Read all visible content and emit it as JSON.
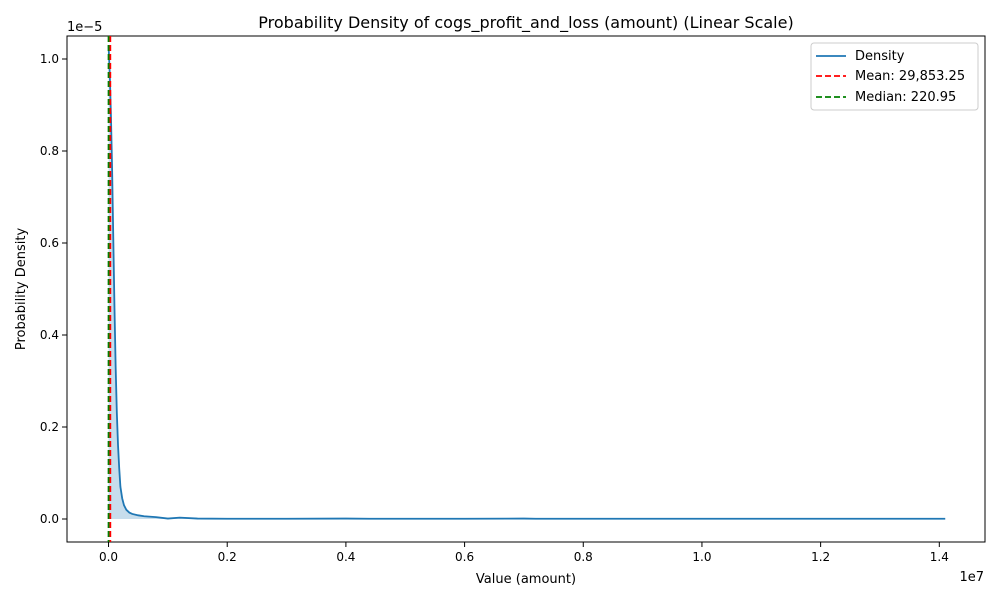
{
  "chart_data": {
    "type": "area",
    "title": "Probability Density of cogs_profit_and_loss (amount) (Linear Scale)",
    "xlabel": "Value (amount)",
    "ylabel": "Probability Density",
    "x_offset_label": "1e7",
    "y_offset_label": "1e−5",
    "x_scale": 10000000,
    "y_scale": 1e-05,
    "xlim": [
      -0.07,
      1.477
    ],
    "ylim": [
      -0.05,
      1.05
    ],
    "x_ticks": [
      0.0,
      0.2,
      0.4,
      0.6,
      0.8,
      1.0,
      1.2,
      1.4
    ],
    "x_tick_labels": [
      "0.0",
      "0.2",
      "0.4",
      "0.6",
      "0.8",
      "1.0",
      "1.2",
      "1.4"
    ],
    "y_ticks": [
      0.0,
      0.2,
      0.4,
      0.6,
      0.8,
      1.0
    ],
    "y_tick_labels": [
      "0.0",
      "0.2",
      "0.4",
      "0.6",
      "0.8",
      "1.0"
    ],
    "grid": false,
    "series": [
      {
        "name": "Density",
        "color": "#1f77b4",
        "fill_color": "#1f77b4",
        "x": [
          0.0,
          0.002,
          0.004,
          0.006,
          0.008,
          0.01,
          0.012,
          0.014,
          0.016,
          0.018,
          0.02,
          0.023,
          0.026,
          0.03,
          0.035,
          0.04,
          0.05,
          0.06,
          0.08,
          0.1,
          0.12,
          0.15,
          0.2,
          0.22,
          0.25,
          0.3,
          0.4,
          0.44,
          0.5,
          0.6,
          0.7,
          0.72,
          0.8,
          0.9,
          1.0,
          1.1,
          1.2,
          1.25,
          1.3,
          1.4,
          1.41
        ],
        "y": [
          1.03,
          0.97,
          0.88,
          0.76,
          0.61,
          0.46,
          0.33,
          0.23,
          0.16,
          0.11,
          0.07,
          0.045,
          0.03,
          0.02,
          0.014,
          0.011,
          0.008,
          0.006,
          0.004,
          0.001,
          0.003,
          0.001,
          0.0005,
          0.0005,
          0.0005,
          0.0005,
          0.001,
          0.0005,
          0.0005,
          0.0005,
          0.001,
          0.0005,
          0.0005,
          0.0005,
          0.0005,
          0.0005,
          0.0005,
          0.0005,
          0.0005,
          0.0005,
          0.0005
        ]
      },
      {
        "name": "Mean: 29,853.25",
        "style": "dashed-vertical",
        "color": "#ff0000",
        "value": 29853.25
      },
      {
        "name": "Median: 220.95",
        "style": "dashed-vertical",
        "color": "#008000",
        "value": 220.95
      }
    ],
    "legend_position": "top-right"
  }
}
